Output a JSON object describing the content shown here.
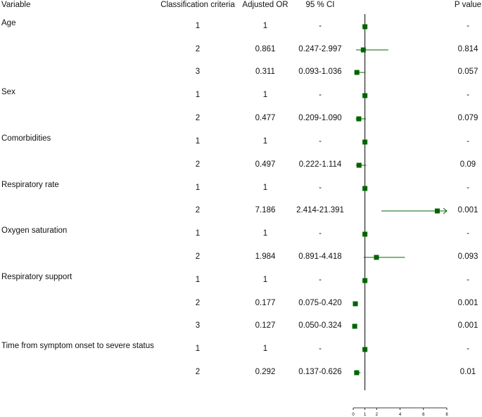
{
  "headers": {
    "variable": "Variable",
    "criteria": "Classification criteria",
    "or": "Adjusted OR",
    "ci": "95 % CI",
    "p": "P value"
  },
  "rows": [
    {
      "variable": "Age",
      "criteria": "1",
      "or": "1",
      "ci": "-",
      "p": "-"
    },
    {
      "variable": "",
      "criteria": "2",
      "or": "0.861",
      "ci": "0.247-2.997",
      "p": "0.814"
    },
    {
      "variable": "",
      "criteria": "3",
      "or": "0.311",
      "ci": "0.093-1.036",
      "p": "0.057"
    },
    {
      "variable": "Sex",
      "criteria": "1",
      "or": "1",
      "ci": "-",
      "p": "-"
    },
    {
      "variable": "",
      "criteria": "2",
      "or": "0.477",
      "ci": "0.209-1.090",
      "p": "0.079"
    },
    {
      "variable": "Comorbidities",
      "criteria": "1",
      "or": "1",
      "ci": "-",
      "p": "-"
    },
    {
      "variable": "",
      "criteria": "2",
      "or": "0.497",
      "ci": "0.222-1.114",
      "p": "0.09"
    },
    {
      "variable": "Respiratory rate",
      "criteria": "1",
      "or": "1",
      "ci": "-",
      "p": "-"
    },
    {
      "variable": "",
      "criteria": "2",
      "or": "7.186",
      "ci": "2.414-21.391",
      "p": "0.001"
    },
    {
      "variable": "Oxygen saturation",
      "criteria": "1",
      "or": "1",
      "ci": "-",
      "p": "-"
    },
    {
      "variable": "",
      "criteria": "2",
      "or": "1.984",
      "ci": "0.891-4.418",
      "p": "0.093"
    },
    {
      "variable": "Respiratory support",
      "criteria": "1",
      "or": "1",
      "ci": "-",
      "p": "-"
    },
    {
      "variable": "",
      "criteria": "2",
      "or": "0.177",
      "ci": "0.075-0.420",
      "p": "0.001"
    },
    {
      "variable": "",
      "criteria": "3",
      "or": "0.127",
      "ci": "0.050-0.324",
      "p": "0.001"
    },
    {
      "variable": "Time from symptom onset to severe status",
      "criteria": "1",
      "or": "1",
      "ci": "-",
      "p": "-"
    },
    {
      "variable": "",
      "criteria": "2",
      "or": "0.292",
      "ci": "0.137-0.626",
      "p": "0.01"
    }
  ],
  "chart_data": {
    "type": "forest",
    "title": "",
    "xlabel": "",
    "reference_line": 1,
    "xlim": [
      0,
      8
    ],
    "xticks": [
      0,
      1,
      2,
      4,
      6,
      8
    ],
    "xtick_labels": [
      "0",
      "1",
      "2",
      "4",
      "6",
      "8"
    ],
    "marker_color": "#006400",
    "points": [
      {
        "or": 1,
        "lower": null,
        "upper": null
      },
      {
        "or": 0.861,
        "lower": 0.247,
        "upper": 2.997
      },
      {
        "or": 0.311,
        "lower": 0.093,
        "upper": 1.036
      },
      {
        "or": 1,
        "lower": null,
        "upper": null
      },
      {
        "or": 0.477,
        "lower": 0.209,
        "upper": 1.09
      },
      {
        "or": 1,
        "lower": null,
        "upper": null
      },
      {
        "or": 0.497,
        "lower": 0.222,
        "upper": 1.114
      },
      {
        "or": 1,
        "lower": null,
        "upper": null
      },
      {
        "or": 7.186,
        "lower": 2.414,
        "upper": 21.391,
        "truncated_upper": true
      },
      {
        "or": 1,
        "lower": null,
        "upper": null
      },
      {
        "or": 1.984,
        "lower": 0.891,
        "upper": 4.418
      },
      {
        "or": 1,
        "lower": null,
        "upper": null
      },
      {
        "or": 0.177,
        "lower": 0.075,
        "upper": 0.42
      },
      {
        "or": 0.127,
        "lower": 0.05,
        "upper": 0.324
      },
      {
        "or": 1,
        "lower": null,
        "upper": null
      },
      {
        "or": 0.292,
        "lower": 0.137,
        "upper": 0.626
      }
    ]
  }
}
